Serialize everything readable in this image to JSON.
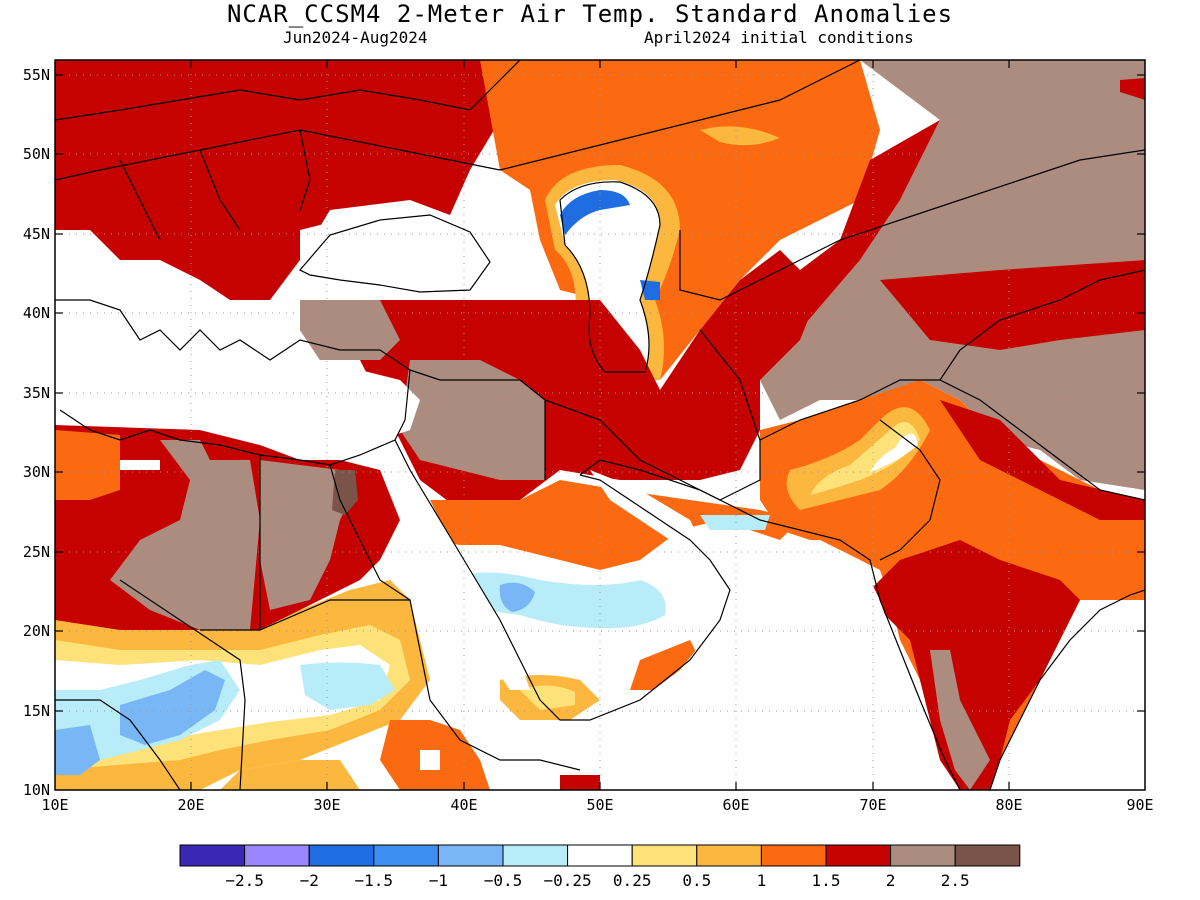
{
  "title": "NCAR_CCSM4 2-Meter Air Temp. Standard Anomalies",
  "period": "Jun2024-Aug2024",
  "initial_conditions": "April2024 initial conditions",
  "lat_ticks": [
    "55N",
    "50N",
    "45N",
    "40N",
    "35N",
    "30N",
    "25N",
    "20N",
    "15N",
    "10N"
  ],
  "lon_ticks": [
    "10E",
    "20E",
    "30E",
    "40E",
    "50E",
    "60E",
    "70E",
    "80E",
    "90E"
  ],
  "colorbar": {
    "colors": [
      "#3a27b5",
      "#9a86ff",
      "#1f6de0",
      "#3c8ef0",
      "#78b6f6",
      "#b8ecf8",
      "#ffffff",
      "#fde27a",
      "#fcb73e",
      "#fb6a10",
      "#c50200",
      "#ad8c80",
      "#7a5448"
    ],
    "labels": [
      "−2.5",
      "−2",
      "−1.5",
      "−1",
      "−0.5",
      "−0.25",
      "0.25",
      "0.5",
      "1",
      "1.5",
      "2",
      "2.5"
    ]
  },
  "map_extent": {
    "lon": [
      10,
      90
    ],
    "lat": [
      10,
      56
    ]
  },
  "palette": {
    "ocean": "#ffffff",
    "deep_red": "#c50200",
    "orange": "#fb6a10",
    "light_orange": "#fcb73e",
    "yellow": "#fde27a",
    "brown": "#ad8c80",
    "dark_brown": "#7a5448",
    "pale_blue": "#b8ecf8",
    "light_blue": "#78b6f6",
    "blue": "#3c8ef0",
    "mid_blue": "#1f6de0"
  }
}
